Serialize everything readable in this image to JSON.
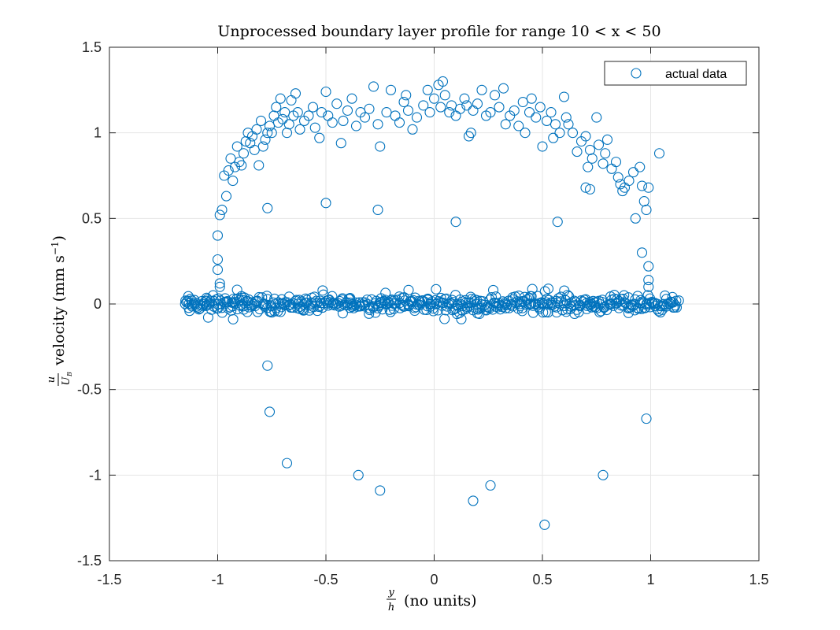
{
  "chart_data": {
    "type": "scatter",
    "title": "Unprocessed boundary layer profile for range 10 < x < 50",
    "xlabel": {
      "fraction_num": "y",
      "fraction_den": "h",
      "text": " (no units)"
    },
    "ylabel": {
      "fraction_num": "u",
      "fraction_den": "U",
      "fraction_den_sub": "B",
      "text": " velocity (mm s",
      "exponent": "−1",
      "close": ")"
    },
    "xlim": [
      -1.5,
      1.5
    ],
    "ylim": [
      -1.5,
      1.5
    ],
    "xticks": [
      -1.5,
      -1,
      -0.5,
      0,
      0.5,
      1,
      1.5
    ],
    "yticks": [
      -1.5,
      -1,
      -0.5,
      0,
      0.5,
      1,
      1.5
    ],
    "xtick_labels": [
      "-1.5",
      "-1",
      "-0.5",
      "0",
      "0.5",
      "1",
      "1.5"
    ],
    "ytick_labels": [
      "-1.5",
      "-1",
      "-0.5",
      "0",
      "0.5",
      "1",
      "1.5"
    ],
    "grid": true,
    "legend": {
      "position": "top-right",
      "entries": [
        "actual data"
      ]
    },
    "marker": "open-circle",
    "color": "#0072BD",
    "series": [
      {
        "name": "actual data",
        "profile_band": {
          "description_of_shape": "dense cluster near y=0 spanning x from -1.15 to 1.12",
          "x_range": [
            -1.15,
            1.12
          ],
          "y_center": 0.0,
          "y_spread": 0.05
        },
        "points": [
          [
            -1.15,
            0.0
          ],
          [
            -1.13,
            -0.04
          ],
          [
            -1.12,
            0.02
          ],
          [
            1.12,
            -0.02
          ],
          [
            1.13,
            0.02
          ],
          [
            -1.0,
            0.4
          ],
          [
            -0.99,
            0.52
          ],
          [
            -0.98,
            0.55
          ],
          [
            -0.97,
            0.75
          ],
          [
            -0.96,
            0.63
          ],
          [
            -0.95,
            0.78
          ],
          [
            -0.94,
            0.85
          ],
          [
            -0.93,
            0.72
          ],
          [
            -0.92,
            0.8
          ],
          [
            -0.91,
            0.92
          ],
          [
            -0.9,
            0.83
          ],
          [
            -0.89,
            0.81
          ],
          [
            -0.88,
            0.88
          ],
          [
            -0.87,
            0.95
          ],
          [
            -0.86,
            1.0
          ],
          [
            -0.85,
            0.94
          ],
          [
            -0.84,
            0.98
          ],
          [
            -0.83,
            0.9
          ],
          [
            -0.82,
            1.02
          ],
          [
            -0.81,
            0.81
          ],
          [
            -0.8,
            1.07
          ],
          [
            -0.79,
            0.92
          ],
          [
            -0.78,
            0.96
          ],
          [
            -0.77,
            1.0
          ],
          [
            -0.76,
            1.04
          ],
          [
            -0.75,
            1.0
          ],
          [
            -0.74,
            1.1
          ],
          [
            -0.73,
            1.15
          ],
          [
            -0.72,
            1.06
          ],
          [
            -0.71,
            1.2
          ],
          [
            -0.7,
            1.08
          ],
          [
            -0.69,
            1.12
          ],
          [
            -0.68,
            1.0
          ],
          [
            -0.67,
            1.05
          ],
          [
            -0.66,
            1.19
          ],
          [
            -0.65,
            1.1
          ],
          [
            -0.64,
            1.23
          ],
          [
            -0.63,
            1.12
          ],
          [
            -0.62,
            1.02
          ],
          [
            -0.6,
            1.07
          ],
          [
            -0.58,
            1.1
          ],
          [
            -0.56,
            1.15
          ],
          [
            -0.55,
            1.03
          ],
          [
            -0.53,
            0.97
          ],
          [
            -0.52,
            1.12
          ],
          [
            -0.5,
            1.24
          ],
          [
            -0.49,
            1.1
          ],
          [
            -0.47,
            1.06
          ],
          [
            -0.45,
            1.17
          ],
          [
            -0.43,
            0.94
          ],
          [
            -0.42,
            1.07
          ],
          [
            -0.4,
            1.13
          ],
          [
            -0.38,
            1.2
          ],
          [
            -0.36,
            1.04
          ],
          [
            -0.34,
            1.12
          ],
          [
            -0.32,
            1.09
          ],
          [
            -0.3,
            1.14
          ],
          [
            -0.28,
            1.27
          ],
          [
            -0.26,
            1.05
          ],
          [
            -0.25,
            0.92
          ],
          [
            -0.22,
            1.12
          ],
          [
            -0.2,
            1.25
          ],
          [
            -0.18,
            1.1
          ],
          [
            -0.16,
            1.06
          ],
          [
            -0.14,
            1.18
          ],
          [
            -0.13,
            1.22
          ],
          [
            -0.12,
            1.13
          ],
          [
            -0.1,
            1.02
          ],
          [
            -0.08,
            1.09
          ],
          [
            -0.05,
            1.16
          ],
          [
            -0.03,
            1.25
          ],
          [
            -0.02,
            1.12
          ],
          [
            0.0,
            1.2
          ],
          [
            0.02,
            1.28
          ],
          [
            0.03,
            1.15
          ],
          [
            0.04,
            1.3
          ],
          [
            0.05,
            1.22
          ],
          [
            0.07,
            1.12
          ],
          [
            0.08,
            1.16
          ],
          [
            0.1,
            1.1
          ],
          [
            0.12,
            1.14
          ],
          [
            0.14,
            1.2
          ],
          [
            0.15,
            1.16
          ],
          [
            0.16,
            0.98
          ],
          [
            0.17,
            1.0
          ],
          [
            0.18,
            1.13
          ],
          [
            0.2,
            1.17
          ],
          [
            0.22,
            1.25
          ],
          [
            0.24,
            1.1
          ],
          [
            0.26,
            1.12
          ],
          [
            0.28,
            1.22
          ],
          [
            0.3,
            1.15
          ],
          [
            0.32,
            1.26
          ],
          [
            0.33,
            1.05
          ],
          [
            0.35,
            1.1
          ],
          [
            0.37,
            1.13
          ],
          [
            0.39,
            1.04
          ],
          [
            0.41,
            1.18
          ],
          [
            0.42,
            1.0
          ],
          [
            0.44,
            1.12
          ],
          [
            0.45,
            1.2
          ],
          [
            0.47,
            1.09
          ],
          [
            0.49,
            1.15
          ],
          [
            0.5,
            0.92
          ],
          [
            0.52,
            1.07
          ],
          [
            0.54,
            1.12
          ],
          [
            0.55,
            0.97
          ],
          [
            0.56,
            1.05
          ],
          [
            0.58,
            1.0
          ],
          [
            0.6,
            1.21
          ],
          [
            0.61,
            1.09
          ],
          [
            0.62,
            1.05
          ],
          [
            0.64,
            1.0
          ],
          [
            0.66,
            0.89
          ],
          [
            0.68,
            0.95
          ],
          [
            0.7,
            0.98
          ],
          [
            0.71,
            0.8
          ],
          [
            0.72,
            0.9
          ],
          [
            0.73,
            0.85
          ],
          [
            0.75,
            1.09
          ],
          [
            0.76,
            0.93
          ],
          [
            0.78,
            0.82
          ],
          [
            0.79,
            0.88
          ],
          [
            0.8,
            0.96
          ],
          [
            0.82,
            0.79
          ],
          [
            0.84,
            0.83
          ],
          [
            0.85,
            0.74
          ],
          [
            0.86,
            0.7
          ],
          [
            0.87,
            0.66
          ],
          [
            0.88,
            0.68
          ],
          [
            0.9,
            0.72
          ],
          [
            0.92,
            0.77
          ],
          [
            0.93,
            0.5
          ],
          [
            0.95,
            0.8
          ],
          [
            0.96,
            0.69
          ],
          [
            0.97,
            0.6
          ],
          [
            0.98,
            0.55
          ],
          [
            0.99,
            0.68
          ],
          [
            1.04,
            0.88
          ],
          [
            -1.0,
            0.2
          ],
          [
            -1.0,
            0.26
          ],
          [
            -0.99,
            0.1
          ],
          [
            -0.99,
            0.12
          ],
          [
            0.96,
            0.3
          ],
          [
            0.99,
            0.22
          ],
          [
            0.99,
            0.14
          ],
          [
            0.99,
            0.1
          ],
          [
            -0.77,
            0.56
          ],
          [
            -0.5,
            0.59
          ],
          [
            -0.26,
            0.55
          ],
          [
            0.1,
            0.48
          ],
          [
            0.57,
            0.48
          ],
          [
            0.7,
            0.68
          ],
          [
            0.72,
            0.67
          ],
          [
            -0.77,
            -0.36
          ],
          [
            -0.76,
            -0.63
          ],
          [
            -0.68,
            -0.93
          ],
          [
            -0.35,
            -1.0
          ],
          [
            -0.25,
            -1.09
          ],
          [
            0.18,
            -1.15
          ],
          [
            0.26,
            -1.06
          ],
          [
            0.51,
            -1.29
          ],
          [
            0.78,
            -1.0
          ],
          [
            0.98,
            -0.67
          ]
        ]
      }
    ]
  }
}
